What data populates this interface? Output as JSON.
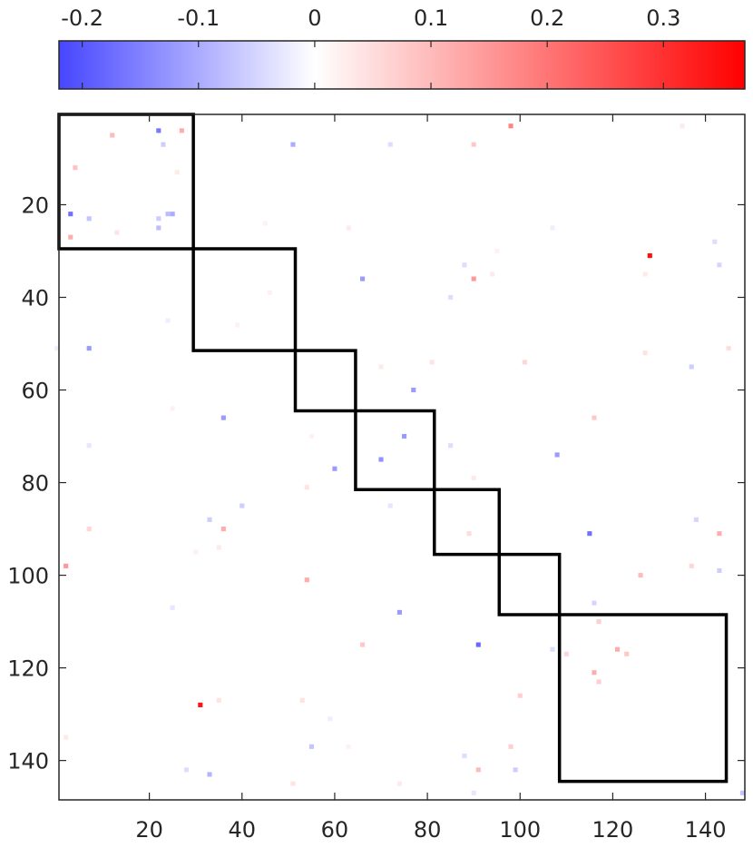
{
  "chart_data": {
    "type": "heatmap",
    "title": "",
    "xlabel": "",
    "ylabel": "",
    "xlim": [
      0.5,
      148.5
    ],
    "ylim": [
      0.5,
      148.5
    ],
    "x_ticks": [
      20,
      40,
      60,
      80,
      100,
      120,
      140
    ],
    "y_ticks": [
      20,
      40,
      60,
      80,
      100,
      120,
      140
    ],
    "x_tick_labels": [
      "20",
      "40",
      "60",
      "80",
      "100",
      "120",
      "140"
    ],
    "y_tick_labels": [
      "20",
      "40",
      "60",
      "80",
      "100",
      "120",
      "140"
    ],
    "y_reversed": true,
    "background_value": 0,
    "colorbar": {
      "orientation": "horizontal",
      "location": "top",
      "range": [
        -0.22,
        0.37
      ],
      "ticks": [
        -0.2,
        -0.1,
        0,
        0.1,
        0.2,
        0.3
      ],
      "tick_labels": [
        "-0.2",
        "-0.1",
        "0",
        "0.1",
        "0.2",
        "0.3"
      ],
      "colormap": [
        "#4646ff",
        "#ffffff",
        "#ff0000"
      ]
    },
    "blocks": [
      {
        "start": 1,
        "end": 29
      },
      {
        "start": 30,
        "end": 51
      },
      {
        "start": 52,
        "end": 64
      },
      {
        "start": 65,
        "end": 81
      },
      {
        "start": 82,
        "end": 95
      },
      {
        "start": 96,
        "end": 108
      },
      {
        "start": 109,
        "end": 144
      }
    ],
    "cells": [
      {
        "col": 22,
        "row": 4,
        "value": -0.16
      },
      {
        "col": 27,
        "row": 4,
        "value": 0.12
      },
      {
        "col": 12,
        "row": 5,
        "value": 0.1
      },
      {
        "col": 23,
        "row": 7,
        "value": -0.06
      },
      {
        "col": 51,
        "row": 7,
        "value": -0.1
      },
      {
        "col": 72,
        "row": 7,
        "value": -0.04
      },
      {
        "col": 90,
        "row": 7,
        "value": 0.08
      },
      {
        "col": 98,
        "row": 3,
        "value": 0.18
      },
      {
        "col": 135,
        "row": 3,
        "value": 0.03
      },
      {
        "col": 4,
        "row": 12,
        "value": 0.09
      },
      {
        "col": 26,
        "row": 13,
        "value": 0.03
      },
      {
        "col": 3,
        "row": 22,
        "value": -0.17
      },
      {
        "col": 7,
        "row": 23,
        "value": -0.07
      },
      {
        "col": 22,
        "row": 23,
        "value": -0.06
      },
      {
        "col": 24,
        "row": 22,
        "value": -0.08
      },
      {
        "col": 25,
        "row": 22,
        "value": -0.1
      },
      {
        "col": 22,
        "row": 25,
        "value": -0.08
      },
      {
        "col": 13,
        "row": 26,
        "value": 0.04
      },
      {
        "col": 3,
        "row": 27,
        "value": 0.12
      },
      {
        "col": 45,
        "row": 24,
        "value": 0.02
      },
      {
        "col": 63,
        "row": 25,
        "value": 0.03
      },
      {
        "col": 107,
        "row": 25,
        "value": -0.02
      },
      {
        "col": 142,
        "row": 28,
        "value": -0.04
      },
      {
        "col": 128,
        "row": 31,
        "value": 0.35
      },
      {
        "col": 95,
        "row": 30,
        "value": 0.02
      },
      {
        "col": 88,
        "row": 33,
        "value": -0.04
      },
      {
        "col": 143,
        "row": 33,
        "value": -0.05
      },
      {
        "col": 94,
        "row": 35,
        "value": 0.03
      },
      {
        "col": 127,
        "row": 35,
        "value": 0.03
      },
      {
        "col": 66,
        "row": 36,
        "value": -0.12
      },
      {
        "col": 90,
        "row": 36,
        "value": 0.15
      },
      {
        "col": 46,
        "row": 39,
        "value": 0.02
      },
      {
        "col": 85,
        "row": 40,
        "value": -0.04
      },
      {
        "col": 24,
        "row": 45,
        "value": -0.02
      },
      {
        "col": 39,
        "row": 46,
        "value": 0.02
      },
      {
        "col": 7,
        "row": 51,
        "value": -0.12
      },
      {
        "col": 0,
        "row": 51,
        "value": -0.02
      },
      {
        "col": 127,
        "row": 52,
        "value": 0.04
      },
      {
        "col": 145,
        "row": 51,
        "value": 0.05
      },
      {
        "col": 81,
        "row": 54,
        "value": 0.04
      },
      {
        "col": 101,
        "row": 54,
        "value": 0.06
      },
      {
        "col": 70,
        "row": 55,
        "value": 0.03
      },
      {
        "col": 137,
        "row": 55,
        "value": -0.06
      },
      {
        "col": 77,
        "row": 60,
        "value": -0.12
      },
      {
        "col": 36,
        "row": 66,
        "value": -0.12
      },
      {
        "col": 116,
        "row": 66,
        "value": 0.08
      },
      {
        "col": 25,
        "row": 64,
        "value": 0.02
      },
      {
        "col": 55,
        "row": 70,
        "value": 0.02
      },
      {
        "col": 75,
        "row": 70,
        "value": -0.12
      },
      {
        "col": 7,
        "row": 72,
        "value": -0.03
      },
      {
        "col": 85,
        "row": 72,
        "value": -0.04
      },
      {
        "col": 108,
        "row": 74,
        "value": -0.12
      },
      {
        "col": 70,
        "row": 75,
        "value": -0.13
      },
      {
        "col": 60,
        "row": 77,
        "value": -0.12
      },
      {
        "col": 90,
        "row": 79,
        "value": 0.03
      },
      {
        "col": 54,
        "row": 81,
        "value": 0.04
      },
      {
        "col": 40,
        "row": 85,
        "value": -0.06
      },
      {
        "col": 72,
        "row": 85,
        "value": -0.03
      },
      {
        "col": 33,
        "row": 88,
        "value": -0.06
      },
      {
        "col": 138,
        "row": 88,
        "value": -0.05
      },
      {
        "col": 7,
        "row": 90,
        "value": 0.06
      },
      {
        "col": 36,
        "row": 90,
        "value": 0.12
      },
      {
        "col": 89,
        "row": 91,
        "value": 0.05
      },
      {
        "col": 115,
        "row": 91,
        "value": -0.17
      },
      {
        "col": 143,
        "row": 91,
        "value": 0.12
      },
      {
        "col": 35,
        "row": 94,
        "value": 0.03
      },
      {
        "col": 30,
        "row": 95,
        "value": 0.02
      },
      {
        "col": 2,
        "row": 98,
        "value": 0.15
      },
      {
        "col": 137,
        "row": 98,
        "value": 0.06
      },
      {
        "col": 143,
        "row": 99,
        "value": -0.06
      },
      {
        "col": 126,
        "row": 100,
        "value": 0.1
      },
      {
        "col": 54,
        "row": 101,
        "value": 0.12
      },
      {
        "col": 116,
        "row": 106,
        "value": -0.05
      },
      {
        "col": 25,
        "row": 107,
        "value": -0.03
      },
      {
        "col": 74,
        "row": 108,
        "value": -0.12
      },
      {
        "col": 117,
        "row": 110,
        "value": 0.07
      },
      {
        "col": 66,
        "row": 115,
        "value": 0.08
      },
      {
        "col": 91,
        "row": 115,
        "value": -0.18
      },
      {
        "col": 107,
        "row": 116,
        "value": -0.04
      },
      {
        "col": 110,
        "row": 117,
        "value": 0.06
      },
      {
        "col": 121,
        "row": 116,
        "value": 0.12
      },
      {
        "col": 123,
        "row": 117,
        "value": 0.08
      },
      {
        "col": 116,
        "row": 121,
        "value": 0.12
      },
      {
        "col": 117,
        "row": 123,
        "value": 0.07
      },
      {
        "col": 100,
        "row": 126,
        "value": 0.07
      },
      {
        "col": 35,
        "row": 127,
        "value": 0.04
      },
      {
        "col": 53,
        "row": 127,
        "value": 0.04
      },
      {
        "col": 31,
        "row": 128,
        "value": 0.34
      },
      {
        "col": 59,
        "row": 131,
        "value": -0.02
      },
      {
        "col": 2,
        "row": 135,
        "value": 0.03
      },
      {
        "col": 55,
        "row": 137,
        "value": -0.07
      },
      {
        "col": 63,
        "row": 137,
        "value": 0.02
      },
      {
        "col": 98,
        "row": 137,
        "value": 0.07
      },
      {
        "col": 88,
        "row": 139,
        "value": -0.04
      },
      {
        "col": 28,
        "row": 142,
        "value": -0.04
      },
      {
        "col": 33,
        "row": 143,
        "value": -0.09
      },
      {
        "col": 91,
        "row": 142,
        "value": 0.1
      },
      {
        "col": 99,
        "row": 142,
        "value": -0.06
      },
      {
        "col": 51,
        "row": 145,
        "value": 0.04
      },
      {
        "col": 74,
        "row": 145,
        "value": 0.03
      },
      {
        "col": 90,
        "row": 147,
        "value": -0.03
      },
      {
        "col": 148,
        "row": 147,
        "value": -0.07
      }
    ]
  }
}
